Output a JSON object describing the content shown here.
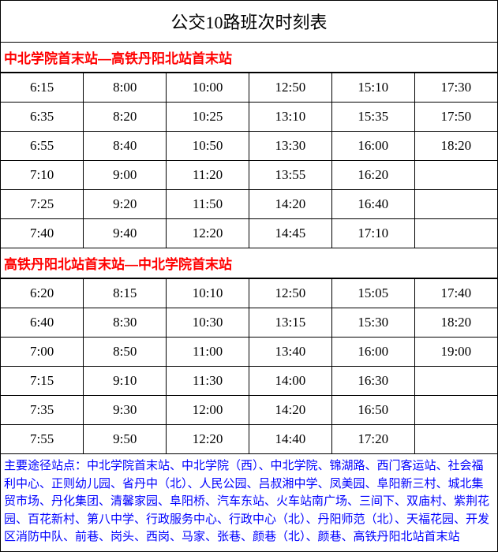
{
  "title": "公交10路班次时刻表",
  "direction1": {
    "label": "中北学院首末站—高铁丹阳北站首末站",
    "rows": [
      [
        "6:15",
        "8:00",
        "10:00",
        "12:50",
        "15:10",
        "17:30"
      ],
      [
        "6:35",
        "8:20",
        "10:25",
        "13:10",
        "15:35",
        "17:50"
      ],
      [
        "6:55",
        "8:40",
        "10:50",
        "13:30",
        "16:00",
        "18:20"
      ],
      [
        "7:10",
        "9:00",
        "11:20",
        "13:55",
        "16:20",
        ""
      ],
      [
        "7:25",
        "9:20",
        "11:50",
        "14:20",
        "16:40",
        ""
      ],
      [
        "7:40",
        "9:40",
        "12:20",
        "14:45",
        "17:10",
        ""
      ]
    ]
  },
  "direction2": {
    "label": "高铁丹阳北站首末站—中北学院首末站",
    "rows": [
      [
        "6:20",
        "8:15",
        "10:10",
        "12:50",
        "15:05",
        "17:40"
      ],
      [
        "6:40",
        "8:30",
        "10:30",
        "13:15",
        "15:30",
        "18:20"
      ],
      [
        "7:00",
        "8:50",
        "11:00",
        "13:40",
        "16:00",
        "19:00"
      ],
      [
        "7:15",
        "9:10",
        "11:30",
        "14:00",
        "16:30",
        ""
      ],
      [
        "7:35",
        "9:30",
        "12:00",
        "14:20",
        "16:50",
        ""
      ],
      [
        "7:55",
        "9:50",
        "12:20",
        "14:40",
        "17:20",
        ""
      ]
    ]
  },
  "stops": {
    "label": "主要途径站点：",
    "text": "中北学院首末站、中北学院（西）、中北学院、锦湖路、西门客运站、社会福利中心、正则幼儿园、省丹中（北）、人民公园、吕叔湘中学、凤美园、阜阳新三村、城北集贸市场、丹化集团、清馨家园、阜阳桥、汽车东站、火车站南广场、三间下、双庙村、紫荆花园、百花新村、第八中学、行政服务中心、行政中心（北）、丹阳师范（北）、天福花园、开发区消防中队、前巷、岗头、西岗、马家、张巷、颜巷（北）、颜巷、高铁丹阳北站首末站"
  },
  "colors": {
    "border": "#000000",
    "direction_text": "#ff0000",
    "stops_text": "#0000ff",
    "background": "#ffffff"
  }
}
